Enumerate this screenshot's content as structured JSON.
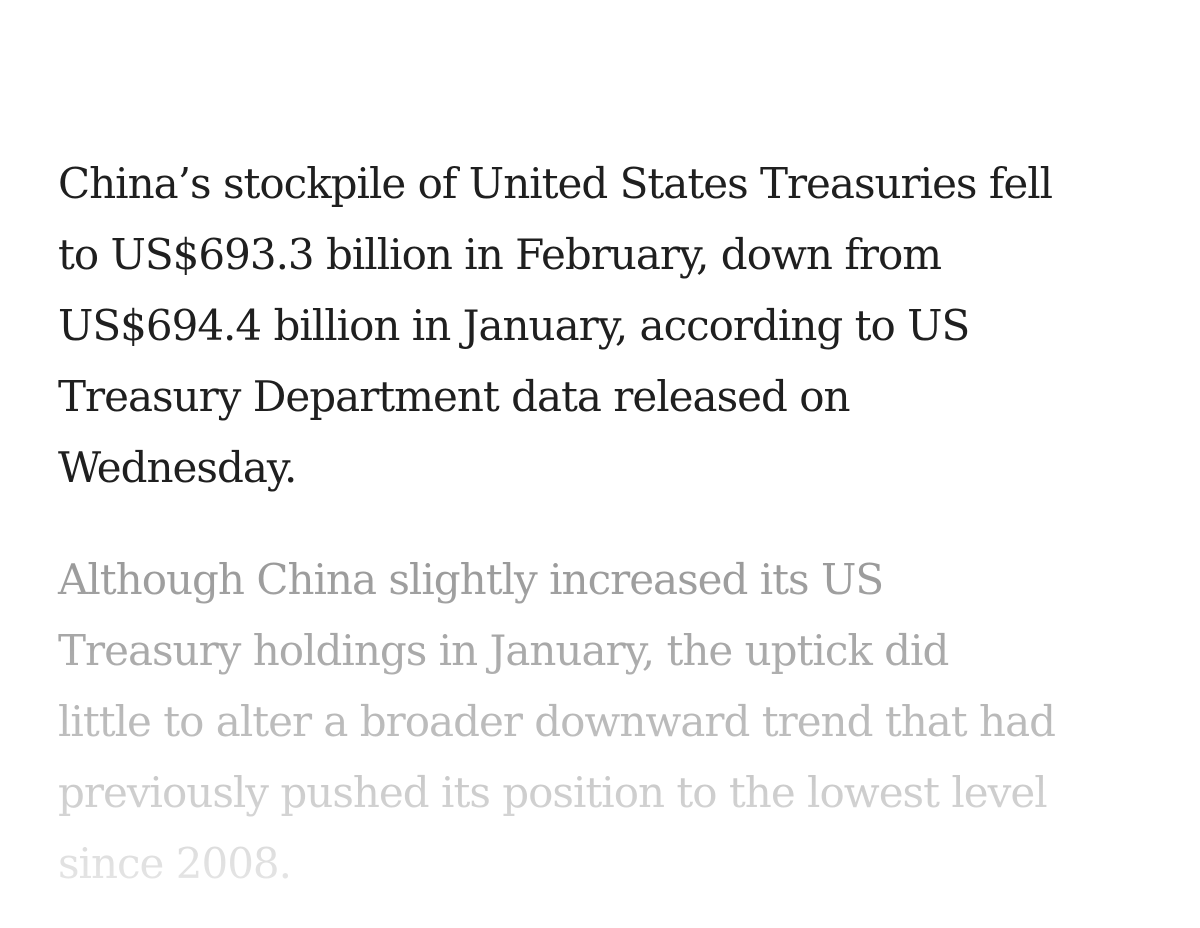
{
  "article": {
    "paragraphs": [
      {
        "lines": [
          "China’s stockpile of United States Treasuries fell",
          "to US$693.3 billion in February, down from",
          "US$694.4 billion in January, according to US",
          "Treasury Department data released on",
          "Wednesday."
        ]
      },
      {
        "lines": [
          "Although China slightly increased its US",
          "Treasury holdings in January, the uptick did",
          "little to alter a broader downward trend that had",
          "previously pushed its position to the lowest level",
          "since 2008."
        ]
      }
    ]
  }
}
